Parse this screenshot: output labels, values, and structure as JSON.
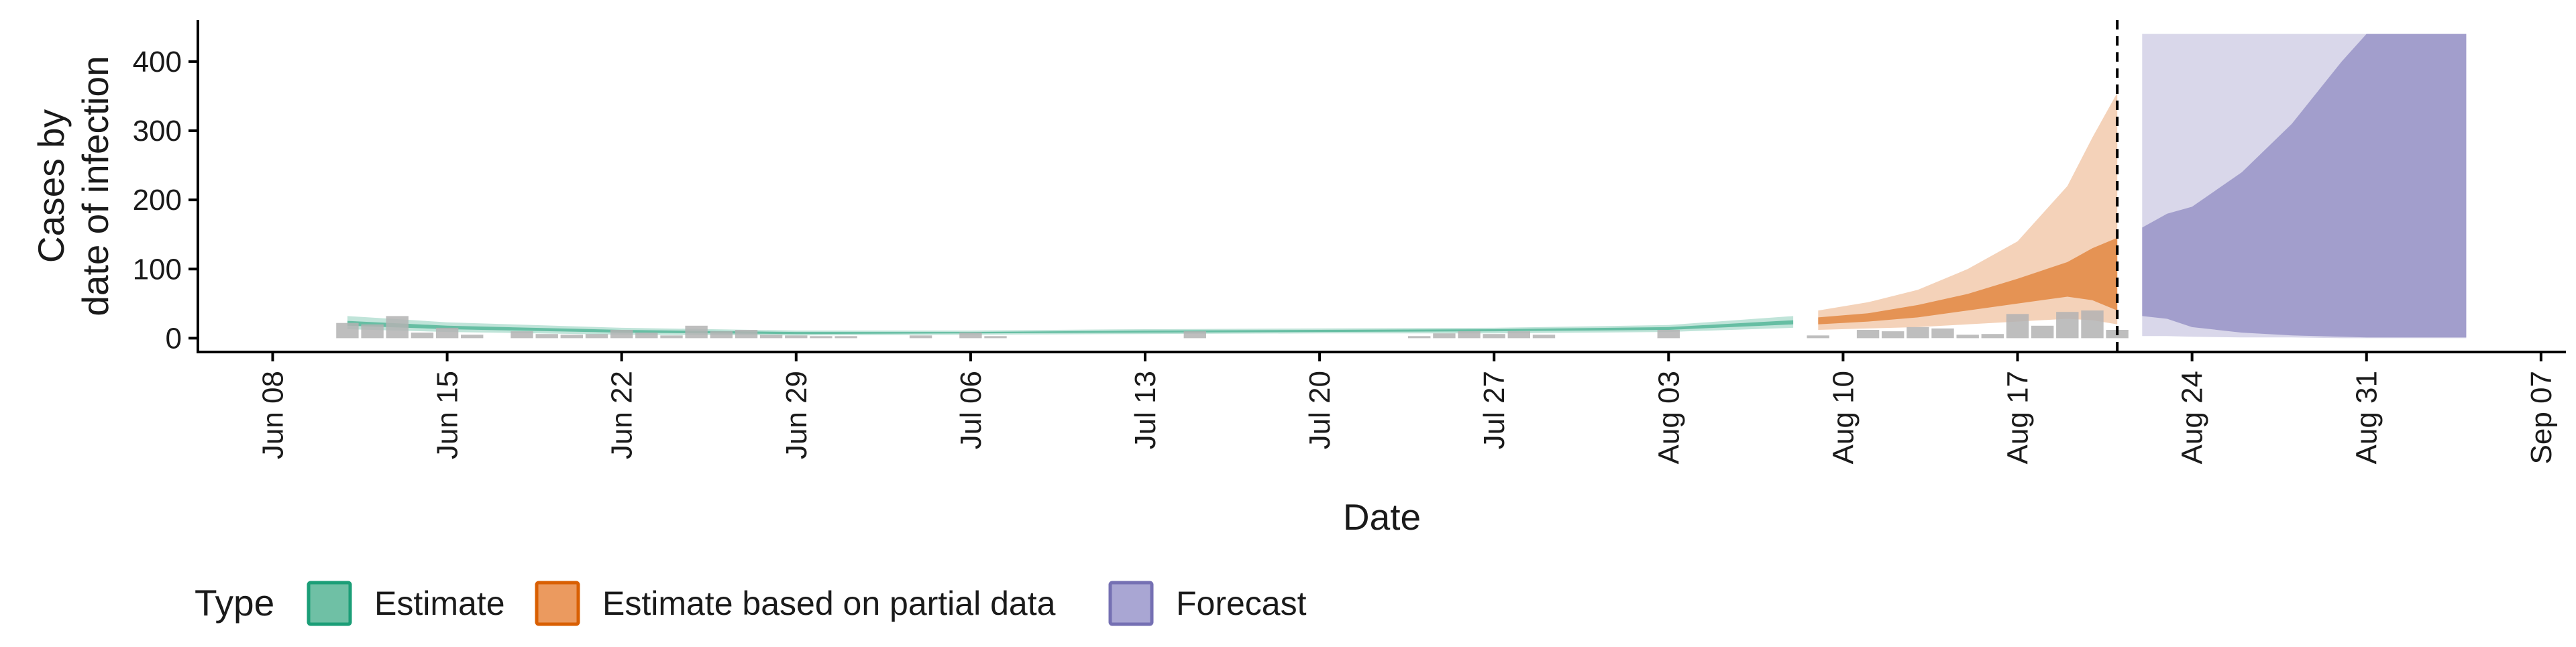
{
  "chart_data": {
    "type": "area",
    "xlabel": "Date",
    "ylabel_lines": [
      "Cases by",
      "date of infection"
    ],
    "x_axis": {
      "type": "date",
      "range": [
        "2020-06-05",
        "2020-09-08"
      ],
      "ticks": [
        {
          "date": "2020-06-08",
          "label": "Jun 08"
        },
        {
          "date": "2020-06-15",
          "label": "Jun 15"
        },
        {
          "date": "2020-06-22",
          "label": "Jun 22"
        },
        {
          "date": "2020-06-29",
          "label": "Jun 29"
        },
        {
          "date": "2020-07-06",
          "label": "Jul 06"
        },
        {
          "date": "2020-07-13",
          "label": "Jul 13"
        },
        {
          "date": "2020-07-20",
          "label": "Jul 20"
        },
        {
          "date": "2020-07-27",
          "label": "Jul 27"
        },
        {
          "date": "2020-08-03",
          "label": "Aug 03"
        },
        {
          "date": "2020-08-10",
          "label": "Aug 10"
        },
        {
          "date": "2020-08-17",
          "label": "Aug 17"
        },
        {
          "date": "2020-08-24",
          "label": "Aug 24"
        },
        {
          "date": "2020-08-31",
          "label": "Aug 31"
        },
        {
          "date": "2020-09-07",
          "label": "Sep 07"
        }
      ]
    },
    "y_axis": {
      "range": [
        -20,
        460
      ],
      "ticks": [
        0,
        100,
        200,
        300,
        400
      ],
      "tick_labels": [
        "0",
        "100",
        "200",
        "300",
        "400"
      ]
    },
    "reference_line": {
      "date": "2020-08-21",
      "style": "dashed"
    },
    "legend": {
      "position": "bottom-left",
      "title": "Type",
      "items": [
        {
          "label": "Estimate",
          "fill": "#6fc0a5",
          "border": "#1b9e77"
        },
        {
          "label": "Estimate based on partial data",
          "fill": "#eb9a5f",
          "border": "#d95f02"
        },
        {
          "label": "Forecast",
          "fill": "#a9a6d3",
          "border": "#7570b3"
        }
      ]
    },
    "observed_cases": {
      "color": "#b3b3b3",
      "points": [
        [
          "2020-06-11",
          22
        ],
        [
          "2020-06-12",
          20
        ],
        [
          "2020-06-13",
          32
        ],
        [
          "2020-06-14",
          8
        ],
        [
          "2020-06-15",
          15
        ],
        [
          "2020-06-16",
          5
        ],
        [
          "2020-06-18",
          10
        ],
        [
          "2020-06-19",
          6
        ],
        [
          "2020-06-20",
          5
        ],
        [
          "2020-06-21",
          6
        ],
        [
          "2020-06-22",
          12
        ],
        [
          "2020-06-23",
          8
        ],
        [
          "2020-06-24",
          4
        ],
        [
          "2020-06-25",
          18
        ],
        [
          "2020-06-26",
          10
        ],
        [
          "2020-06-27",
          12
        ],
        [
          "2020-06-28",
          5
        ],
        [
          "2020-06-29",
          4
        ],
        [
          "2020-06-30",
          3
        ],
        [
          "2020-07-01",
          3
        ],
        [
          "2020-07-04",
          4
        ],
        [
          "2020-07-06",
          8
        ],
        [
          "2020-07-07",
          3
        ],
        [
          "2020-07-15",
          10
        ],
        [
          "2020-07-24",
          3
        ],
        [
          "2020-07-25",
          7
        ],
        [
          "2020-07-26",
          10
        ],
        [
          "2020-07-27",
          6
        ],
        [
          "2020-07-28",
          10
        ],
        [
          "2020-07-29",
          5
        ],
        [
          "2020-08-03",
          12
        ],
        [
          "2020-08-09",
          4
        ],
        [
          "2020-08-11",
          12
        ],
        [
          "2020-08-12",
          10
        ],
        [
          "2020-08-13",
          16
        ],
        [
          "2020-08-14",
          14
        ],
        [
          "2020-08-15",
          5
        ],
        [
          "2020-08-16",
          6
        ],
        [
          "2020-08-17",
          35
        ],
        [
          "2020-08-18",
          18
        ],
        [
          "2020-08-19",
          38
        ],
        [
          "2020-08-20",
          40
        ],
        [
          "2020-08-21",
          12
        ]
      ]
    },
    "series": [
      {
        "type": "Estimate",
        "fill": "#1b9e77",
        "dates": [
          "2020-06-11",
          "2020-06-15",
          "2020-06-22",
          "2020-06-29",
          "2020-07-06",
          "2020-07-13",
          "2020-07-20",
          "2020-07-27",
          "2020-08-03",
          "2020-08-08"
        ],
        "upper90": [
          32,
          23,
          15,
          11,
          11,
          13,
          14,
          15,
          19,
          32
        ],
        "upper50": [
          25,
          18,
          12,
          9,
          9,
          11,
          12,
          13,
          16,
          26
        ],
        "lower50": [
          18,
          13,
          8,
          6,
          7,
          8,
          9,
          10,
          12,
          20
        ],
        "lower90": [
          13,
          9,
          5,
          4,
          5,
          6,
          7,
          7,
          9,
          15
        ]
      },
      {
        "type": "Estimate based on partial data",
        "fill": "#d95f02",
        "dates": [
          "2020-08-09",
          "2020-08-11",
          "2020-08-13",
          "2020-08-15",
          "2020-08-17",
          "2020-08-19",
          "2020-08-20",
          "2020-08-21"
        ],
        "upper90": [
          40,
          52,
          70,
          100,
          140,
          220,
          290,
          355
        ],
        "upper50": [
          30,
          36,
          48,
          64,
          86,
          110,
          130,
          145
        ],
        "lower50": [
          20,
          24,
          30,
          40,
          50,
          60,
          55,
          40
        ],
        "lower90": [
          12,
          14,
          16,
          20,
          24,
          28,
          26,
          20
        ]
      },
      {
        "type": "Forecast",
        "fill": "#7570b3",
        "dates": [
          "2020-08-22",
          "2020-08-23",
          "2020-08-24",
          "2020-08-26",
          "2020-08-28",
          "2020-08-30",
          "2020-08-31",
          "2020-09-01",
          "2020-09-03",
          "2020-09-04"
        ],
        "upper90": [
          440,
          440,
          440,
          440,
          440,
          440,
          440,
          440,
          440,
          440
        ],
        "upper50": [
          160,
          180,
          190,
          240,
          310,
          400,
          440,
          440,
          440,
          440
        ],
        "lower50": [
          32,
          28,
          16,
          8,
          4,
          2,
          1,
          1,
          1,
          1
        ],
        "lower90": [
          3,
          3,
          2,
          1,
          1,
          0,
          0,
          0,
          0,
          0
        ]
      }
    ]
  }
}
